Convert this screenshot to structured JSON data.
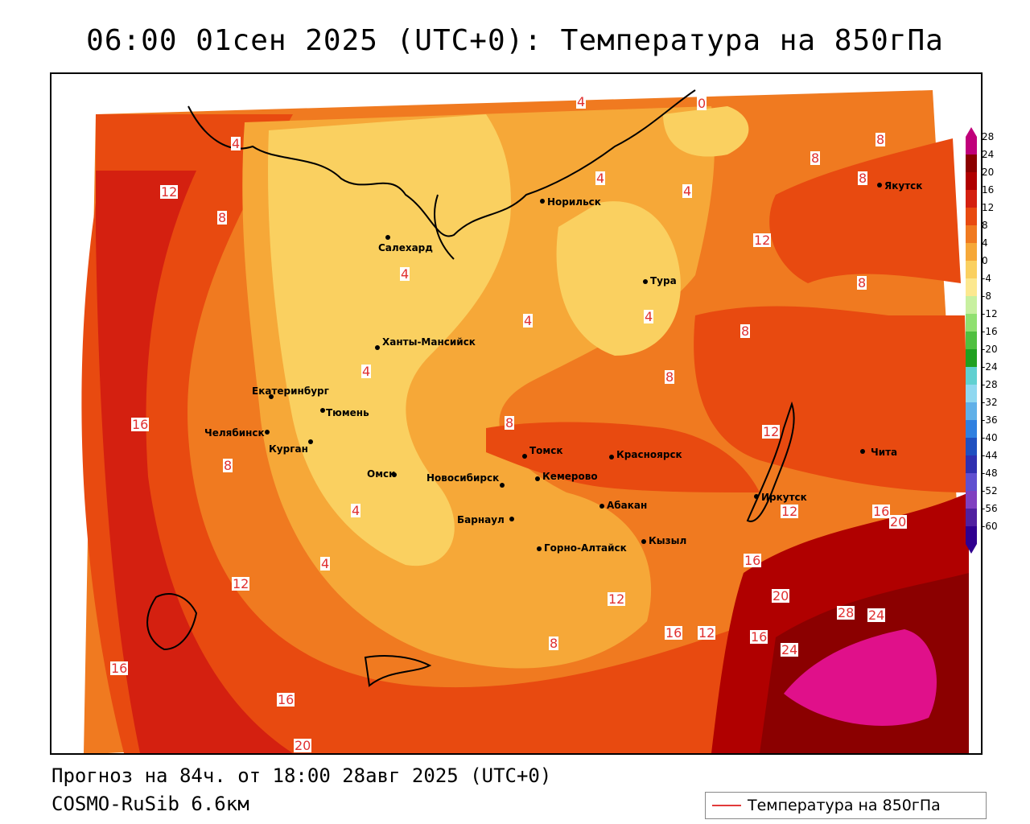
{
  "title": "06:00 01сен 2025 (UTC+0): Температура на 850гПа",
  "footer": {
    "forecast": "Прогноз на 84ч. от 18:00 28авг 2025 (UTC+0)",
    "model": "COSMO-RuSib 6.6км"
  },
  "legend": {
    "label": "Температура на 850гПа",
    "line_color": "#e23a3a"
  },
  "colorbar": {
    "ticks": [
      "28",
      "24",
      "20",
      "16",
      "12",
      "8",
      "4",
      "0",
      "-4",
      "-8",
      "-12",
      "-16",
      "-20",
      "-24",
      "-28",
      "-32",
      "-36",
      "-40",
      "-44",
      "-48",
      "-52",
      "-56",
      "-60"
    ],
    "colors": [
      "#c0007a",
      "#8b0000",
      "#b00000",
      "#d42010",
      "#e84a10",
      "#f07a20",
      "#f6a838",
      "#fad060",
      "#fce890",
      "#c8f0a0",
      "#90e070",
      "#50c040",
      "#20a020",
      "#60d0d0",
      "#90d8f0",
      "#60b0e8",
      "#3080e0",
      "#2050c0",
      "#3030b0",
      "#6050d0",
      "#8040c0",
      "#5020a0",
      "#300090"
    ]
  },
  "cities": [
    {
      "name": "Норильск"
    },
    {
      "name": "Якутск"
    },
    {
      "name": "Салехард"
    },
    {
      "name": "Тура"
    },
    {
      "name": "Ханты-Мансийск"
    },
    {
      "name": "Екатеринбург"
    },
    {
      "name": "Тюмень"
    },
    {
      "name": "Челябинск"
    },
    {
      "name": "Курган"
    },
    {
      "name": "Омск"
    },
    {
      "name": "Новосибирск"
    },
    {
      "name": "Томск"
    },
    {
      "name": "Красноярск"
    },
    {
      "name": "Кемерово"
    },
    {
      "name": "Барнаул"
    },
    {
      "name": "Абакан"
    },
    {
      "name": "Горно-Алтайск"
    },
    {
      "name": "Кызыл"
    },
    {
      "name": "Иркутск"
    },
    {
      "name": "Чита"
    }
  ],
  "isotherm_labels": [
    "4",
    "0",
    "4",
    "8",
    "8",
    "8",
    "12",
    "8",
    "4",
    "4",
    "4",
    "8",
    "8",
    "8",
    "8",
    "4",
    "4",
    "4",
    "12",
    "16",
    "8",
    "12",
    "12",
    "16",
    "20",
    "24",
    "28",
    "24",
    "20",
    "16",
    "16",
    "12",
    "16",
    "12",
    "8",
    "4",
    "4",
    "12",
    "16",
    "16",
    "20"
  ]
}
